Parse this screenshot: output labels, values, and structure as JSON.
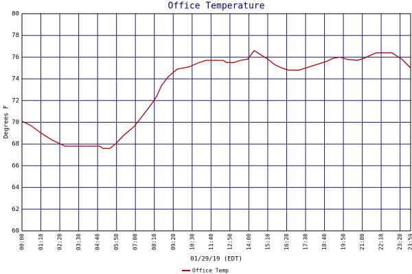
{
  "chart_data": {
    "type": "line",
    "title": "Office Temperature",
    "y_label": "Degrees F",
    "x_label": "01/29/19 (EDT)",
    "x": [
      0,
      33,
      71,
      109,
      142,
      160,
      186,
      249,
      288,
      300,
      326,
      346,
      377,
      415,
      453,
      483,
      499,
      517,
      542,
      575,
      618,
      656,
      682,
      746,
      758,
      784,
      809,
      835,
      860,
      885,
      911,
      936,
      962,
      987,
      1025,
      1051,
      1089,
      1127,
      1153,
      1178,
      1204,
      1242,
      1267,
      1293,
      1313,
      1369,
      1382,
      1407,
      1439
    ],
    "series": [
      {
        "name": "Office Temp",
        "color": "#b00000",
        "values": [
          70.1,
          69.7,
          69.0,
          68.4,
          68.0,
          67.8,
          67.8,
          67.8,
          67.8,
          67.6,
          67.6,
          68.0,
          68.8,
          69.6,
          70.8,
          71.8,
          72.4,
          73.4,
          74.2,
          74.9,
          75.1,
          75.5,
          75.7,
          75.7,
          75.5,
          75.5,
          75.7,
          75.8,
          76.6,
          76.2,
          75.8,
          75.3,
          75.0,
          74.8,
          74.8,
          75.0,
          75.3,
          75.6,
          75.9,
          76.0,
          75.8,
          75.7,
          75.9,
          76.2,
          76.4,
          76.4,
          76.2,
          75.8,
          75.0
        ]
      }
    ],
    "xlim": [
      0,
      1439
    ],
    "ylim": [
      60,
      80
    ],
    "xticks": [
      {
        "value": 0,
        "label": "00:00"
      },
      {
        "value": 70,
        "label": "01:10"
      },
      {
        "value": 140,
        "label": "02:20"
      },
      {
        "value": 210,
        "label": "03:30"
      },
      {
        "value": 280,
        "label": "04:40"
      },
      {
        "value": 350,
        "label": "05:50"
      },
      {
        "value": 420,
        "label": "07:00"
      },
      {
        "value": 490,
        "label": "08:10"
      },
      {
        "value": 560,
        "label": "09:20"
      },
      {
        "value": 630,
        "label": "10:30"
      },
      {
        "value": 700,
        "label": "11:40"
      },
      {
        "value": 770,
        "label": "12:50"
      },
      {
        "value": 840,
        "label": "14:00"
      },
      {
        "value": 910,
        "label": "15:10"
      },
      {
        "value": 980,
        "label": "16:20"
      },
      {
        "value": 1050,
        "label": "17:30"
      },
      {
        "value": 1120,
        "label": "18:40"
      },
      {
        "value": 1190,
        "label": "19:50"
      },
      {
        "value": 1260,
        "label": "21:00"
      },
      {
        "value": 1330,
        "label": "22:10"
      },
      {
        "value": 1400,
        "label": "23:20"
      },
      {
        "value": 1439,
        "label": "23:59"
      }
    ],
    "yticks": [
      60,
      62,
      64,
      66,
      68,
      70,
      72,
      74,
      76,
      78,
      80
    ],
    "grid": true,
    "grid_color": "#1a1a7a"
  }
}
